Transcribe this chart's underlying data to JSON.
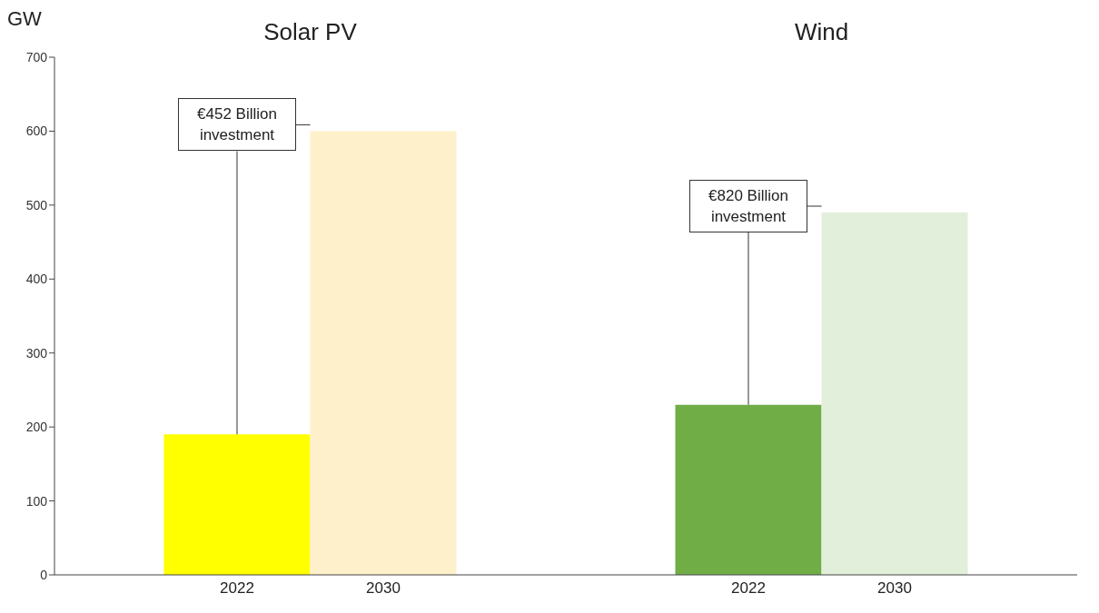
{
  "chart_data": [
    {
      "type": "bar",
      "title": "Solar PV",
      "ylabel": "GW",
      "categories": [
        "2022",
        "2030"
      ],
      "values": [
        190,
        600
      ],
      "colors": [
        "#ffff00",
        "#fff0cc"
      ],
      "ylim": [
        0,
        700
      ],
      "yticks": [
        0,
        100,
        200,
        300,
        400,
        500,
        600,
        700
      ],
      "grid": false,
      "annotations": [
        {
          "text": "€452 Billion investment",
          "x": "2022",
          "y": 190
        }
      ]
    },
    {
      "type": "bar",
      "title": "Wind",
      "categories": [
        "2022",
        "2030"
      ],
      "values": [
        230,
        490
      ],
      "colors": [
        "#70ad47",
        "#e2efda"
      ],
      "ylim": [
        0,
        700
      ],
      "yticks": [
        0,
        100,
        200,
        300,
        400,
        500,
        600,
        700
      ],
      "grid": false,
      "tick_labels": "x",
      "annotations": [
        {
          "text": "€820 Billion investment",
          "x": "2022",
          "y": 230
        }
      ]
    }
  ]
}
